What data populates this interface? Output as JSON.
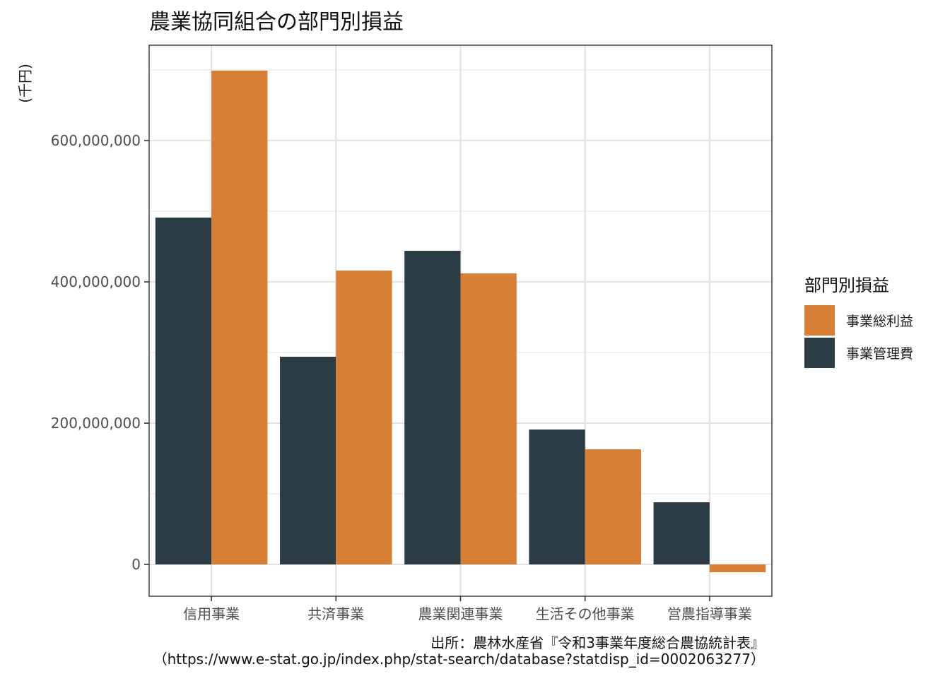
{
  "chart_data": {
    "type": "bar",
    "title": "農業協同組合の部門別損益",
    "ylabel": "(千円)",
    "xlabel": "",
    "categories": [
      "信用事業",
      "共済事業",
      "農業関連事業",
      "生活その他事業",
      "営農指導事業"
    ],
    "series": [
      {
        "key": "kanrihi",
        "name": "事業管理費",
        "color": "#2c3c44",
        "values": [
          491000000,
          294000000,
          444000000,
          191000000,
          88000000
        ]
      },
      {
        "key": "sourieki",
        "name": "事業総利益",
        "color": "#d77f35",
        "values": [
          699000000,
          416000000,
          412000000,
          163000000,
          -11000000
        ]
      }
    ],
    "ylim": [
      -45000000,
      735000000
    ],
    "yticks": [
      0,
      200000000,
      400000000,
      600000000
    ],
    "ytick_labels": [
      "0",
      "200,000,000",
      "400,000,000",
      "600,000,000"
    ],
    "grid": true,
    "legend": {
      "title": "部門別損益",
      "placement": "right",
      "entries": [
        {
          "name": "事業総利益",
          "color": "#d77f35"
        },
        {
          "name": "事業管理費",
          "color": "#2c3c44"
        }
      ]
    },
    "caption": [
      "出所：農林水産省『令和3事業年度総合農協統計表』",
      "（https://www.e-stat.go.jp/index.php/stat-search/database?statdisp_id=0002063277）"
    ]
  }
}
